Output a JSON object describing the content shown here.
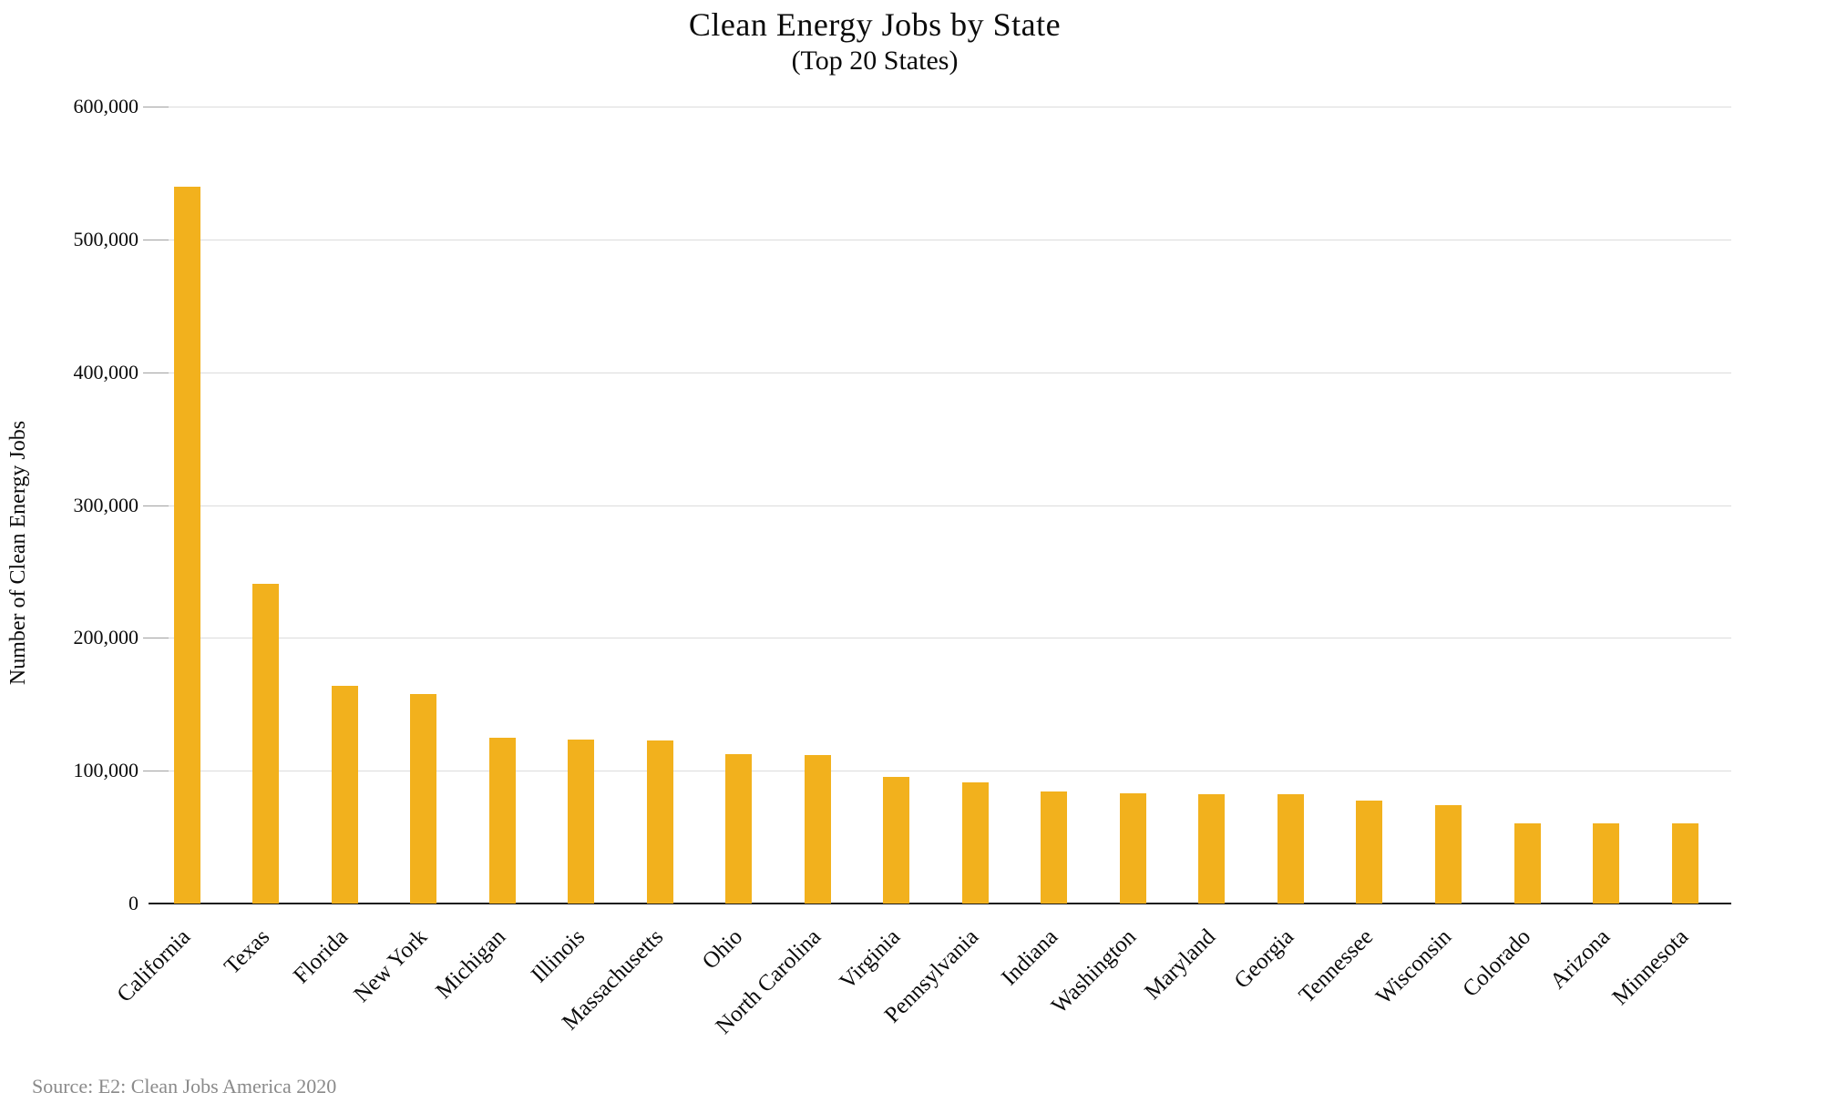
{
  "title": "Clean Energy Jobs by State",
  "subtitle": "(Top 20 States)",
  "y_axis_title": "Number of Clean Energy Jobs",
  "source": "Source: E2: Clean Jobs America 2020",
  "colors": {
    "bar": "#f2b11d",
    "gridline": "#dcdcdc",
    "axis_line": "#1a1a1a",
    "text": "#0b0b0b",
    "source_text": "#8a8a8a"
  },
  "chart_data": {
    "type": "bar",
    "title": "Clean Energy Jobs by State",
    "subtitle": "(Top 20 States)",
    "xlabel": "",
    "ylabel": "Number of Clean Energy Jobs",
    "categories": [
      "California",
      "Texas",
      "Florida",
      "New York",
      "Michigan",
      "Illinois",
      "Massachusetts",
      "Ohio",
      "North Carolina",
      "Virginia",
      "Pennsylvania",
      "Indiana",
      "Washington",
      "Maryland",
      "Georgia",
      "Tennessee",
      "Wisconsin",
      "Colorado",
      "Arizona",
      "Minnesota"
    ],
    "values": [
      540000,
      240500,
      164000,
      158000,
      125000,
      123500,
      123000,
      112500,
      112000,
      95000,
      91000,
      84500,
      83000,
      82500,
      82000,
      77500,
      74000,
      60500,
      60500,
      60500
    ],
    "ylim": [
      0,
      600000
    ],
    "ytick_interval": 100000,
    "ytick_labels": [
      "0",
      "100,000",
      "200,000",
      "300,000",
      "400,000",
      "500,000",
      "600,000"
    ],
    "grid": "horizontal",
    "legend_position": "none",
    "bar_color": "#f2b11d",
    "x_label_rotation_deg": 45,
    "source": "Source: E2: Clean Jobs America 2020"
  }
}
